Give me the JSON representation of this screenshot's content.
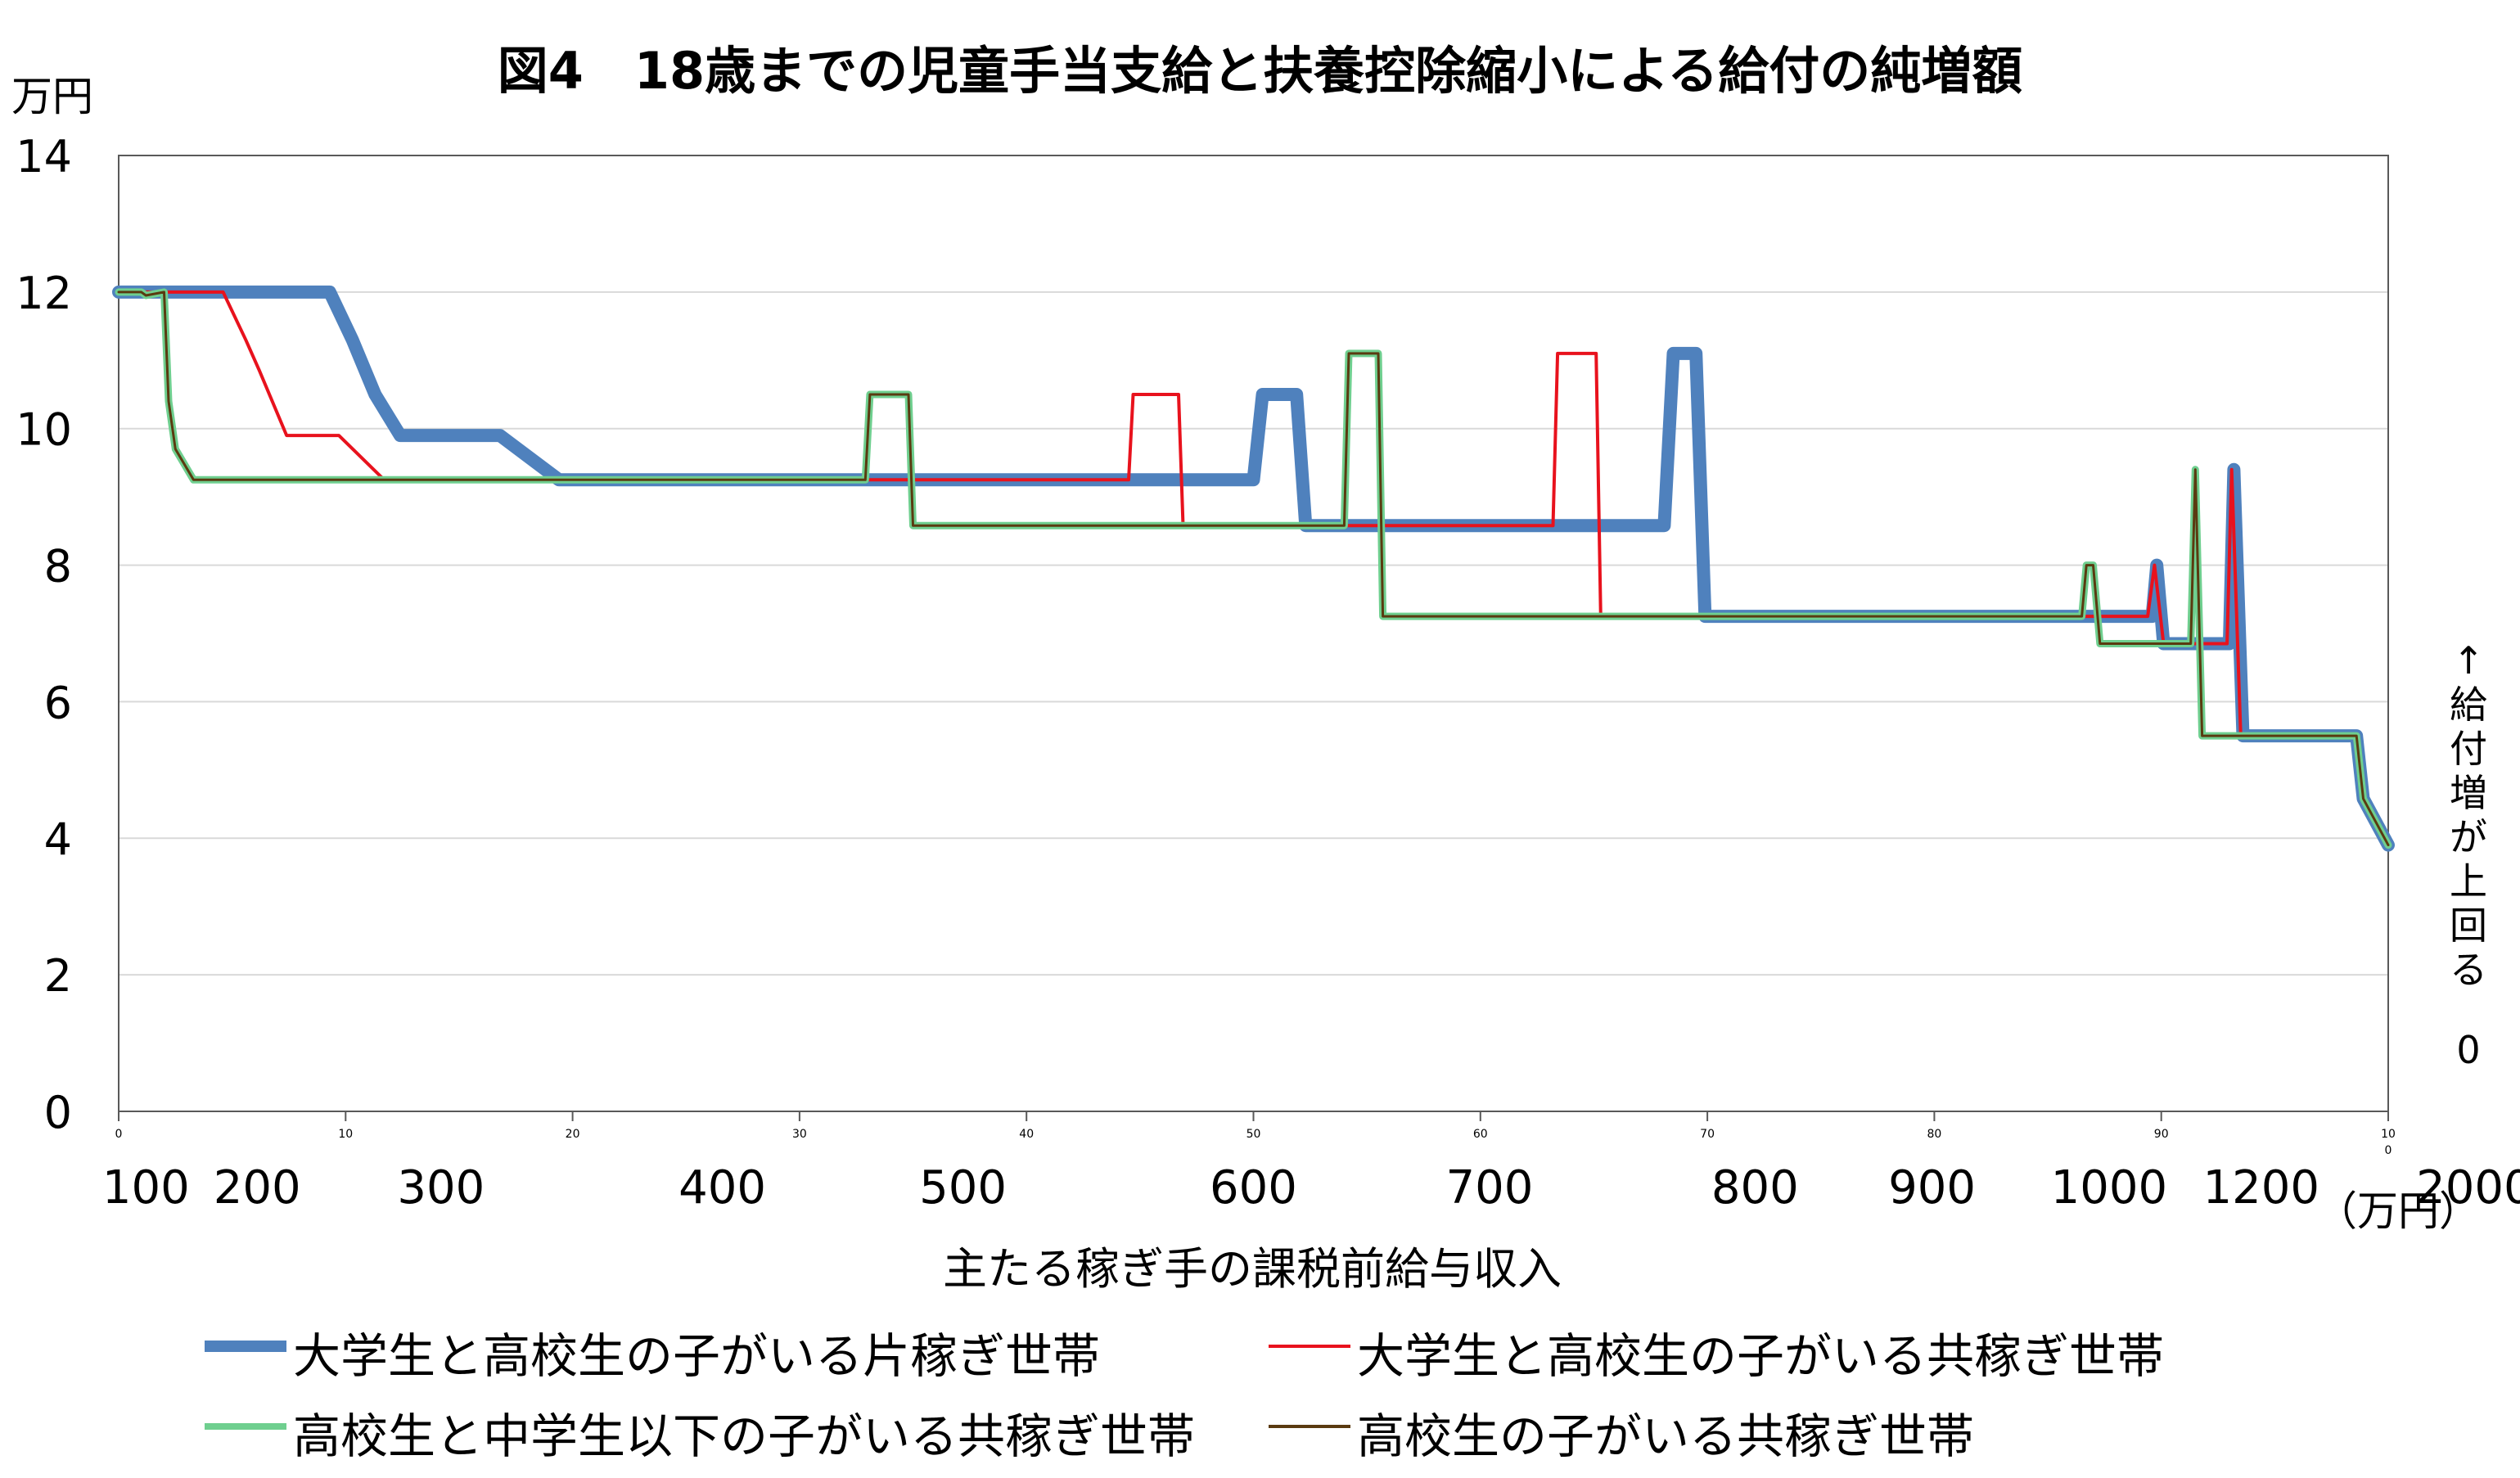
{
  "chart_data": {
    "type": "line",
    "title": "図4　18歳までの児童手当支給と扶養控除縮小による給付の純増額",
    "ylabel_unit": "万円",
    "xlabel": "主たる稼ぎ手の課税前給与収入",
    "xlabel_unit": "（万円）",
    "annotation": "↑ 給付増が上回る",
    "annotation_zero": "0",
    "ylim": [
      0,
      14
    ],
    "y_ticks": [
      "0",
      "2",
      "4",
      "6",
      "8",
      "10",
      "12",
      "14"
    ],
    "x_tick_labels": [
      "100",
      "200",
      "300",
      "400",
      "500",
      "600",
      "700",
      "800",
      "900",
      "1000",
      "1200",
      "2000"
    ],
    "x_small_ticks": [
      "0",
      "10",
      "20",
      "30",
      "40",
      "50",
      "60",
      "70",
      "80",
      "90",
      "10\n0"
    ],
    "x_index_range": [
      0,
      100
    ],
    "grid": "horizontal",
    "legend_position": "bottom",
    "series": [
      {
        "name": "大学生と高校生の子がいる片稼ぎ世帯",
        "color": "#4F81BD",
        "x": [
          0,
          9.3,
          10.3,
          11.3,
          12.4,
          13.3,
          16.8,
          19.4,
          50.0,
          50.4,
          51.9,
          52.3,
          68.1,
          68.5,
          69.5,
          69.9,
          89.6,
          89.8,
          90.1,
          93.0,
          93.2,
          93.6,
          98.6,
          98.9,
          100
        ],
        "values": [
          12.0,
          12.0,
          11.3,
          10.5,
          9.9,
          9.9,
          9.9,
          9.25,
          9.25,
          10.5,
          10.5,
          8.58,
          8.58,
          11.1,
          11.1,
          7.25,
          7.25,
          8.0,
          6.85,
          6.85,
          9.4,
          5.5,
          5.5,
          4.58,
          3.9
        ]
      },
      {
        "name": "大学生と高校生の子がいる共稼ぎ世帯",
        "color": "#E8121D",
        "x": [
          0,
          4.6,
          5.6,
          6.2,
          7.4,
          9.7,
          11.7,
          44.5,
          44.7,
          46.7,
          46.9,
          63.2,
          63.4,
          65.1,
          65.3,
          86.7,
          89.4,
          89.7,
          90.1,
          92.9,
          93.1,
          93.5,
          98.6,
          98.9,
          100
        ],
        "values": [
          12.0,
          12.0,
          11.3,
          10.85,
          9.9,
          9.9,
          9.25,
          9.25,
          10.5,
          10.5,
          8.58,
          8.58,
          11.1,
          11.1,
          7.25,
          7.25,
          7.25,
          8.0,
          6.85,
          6.85,
          9.4,
          5.5,
          5.5,
          4.58,
          3.9
        ]
      },
      {
        "name": "高校生と中学生以下の子がいる共稼ぎ世帯",
        "color": "#6FCF8F",
        "x": [
          0,
          1.0,
          1.2,
          2.0,
          2.2,
          2.5,
          3.3,
          32.9,
          33.1,
          34.8,
          35.0,
          54.0,
          54.2,
          55.5,
          55.7,
          86.5,
          86.7,
          87.0,
          87.3,
          91.3,
          91.5,
          91.8,
          98.6,
          98.9,
          100
        ],
        "values": [
          12.0,
          12.0,
          11.95,
          12.0,
          10.4,
          9.7,
          9.25,
          9.25,
          10.5,
          10.5,
          8.58,
          8.58,
          11.1,
          11.1,
          7.25,
          7.25,
          8.0,
          8.0,
          6.85,
          6.85,
          9.4,
          5.5,
          5.5,
          4.58,
          3.9
        ]
      },
      {
        "name": "高校生の子がいる共稼ぎ世帯",
        "color": "#5A3A10",
        "x": [
          0,
          1.0,
          1.2,
          2.0,
          2.2,
          2.5,
          3.3,
          32.9,
          33.1,
          34.8,
          35.0,
          54.0,
          54.2,
          55.5,
          55.7,
          86.5,
          86.7,
          87.0,
          87.3,
          91.3,
          91.5,
          91.8,
          98.6,
          98.9,
          100
        ],
        "values": [
          12.0,
          12.0,
          11.95,
          12.0,
          10.4,
          9.7,
          9.25,
          9.25,
          10.5,
          10.5,
          8.58,
          8.58,
          11.1,
          11.1,
          7.25,
          7.25,
          8.0,
          8.0,
          6.85,
          6.85,
          9.4,
          5.5,
          5.5,
          4.58,
          3.9
        ]
      }
    ]
  },
  "legend": {
    "items": [
      {
        "label": "大学生と高校生の子がいる片稼ぎ世帯",
        "color": "#4F81BD"
      },
      {
        "label": "大学生と高校生の子がいる共稼ぎ世帯",
        "color": "#E8121D"
      },
      {
        "label": "高校生と中学生以下の子がいる共稼ぎ世帯",
        "color": "#6FCF8F"
      },
      {
        "label": "高校生の子がいる共稼ぎ世帯",
        "color": "#5A3A10"
      }
    ]
  }
}
